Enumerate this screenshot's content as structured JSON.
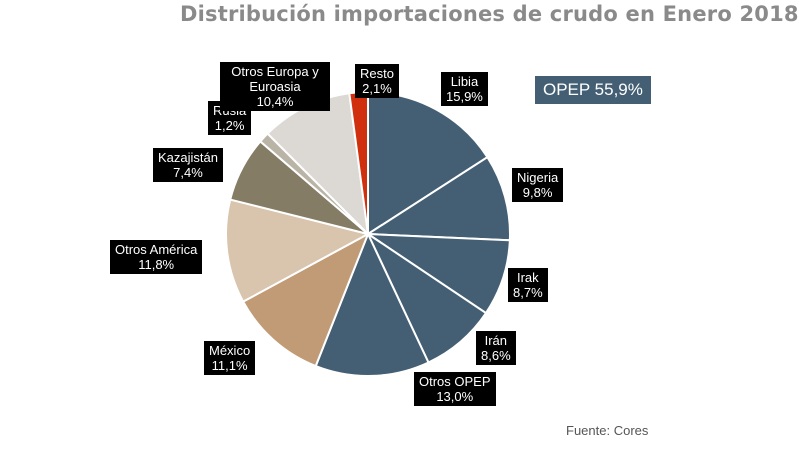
{
  "chart_data": {
    "type": "pie",
    "title": "Distribución importaciones de crudo en Enero 2018",
    "slices": [
      {
        "label": "Libia",
        "value": 15.9,
        "value_text": "15,9%",
        "color": "#445f74"
      },
      {
        "label": "Nigeria",
        "value": 9.8,
        "value_text": "9,8%",
        "color": "#445f74"
      },
      {
        "label": "Irak",
        "value": 8.7,
        "value_text": "8,7%",
        "color": "#445f74"
      },
      {
        "label": "Irán",
        "value": 8.6,
        "value_text": "8,6%",
        "color": "#445f74"
      },
      {
        "label": "Otros OPEP",
        "value": 13.0,
        "value_text": "13,0%",
        "color": "#445f74"
      },
      {
        "label": "México",
        "value": 11.1,
        "value_text": "11,1%",
        "color": "#c09b76"
      },
      {
        "label": "Otros América",
        "value": 11.8,
        "value_text": "11,8%",
        "color": "#d9c4ad"
      },
      {
        "label": "Kazajistán",
        "value": 7.4,
        "value_text": "7,4%",
        "color": "#857c66"
      },
      {
        "label": "Rusia",
        "value": 1.2,
        "value_text": "1,2%",
        "color": "#bab4a6"
      },
      {
        "label": "Otros Europa y Euroasia",
        "value": 10.4,
        "value_text": "10,4%",
        "color": "#dcd9d4"
      },
      {
        "label": "Resto",
        "value": 2.1,
        "value_text": "2,1%",
        "color": "#d0300d"
      }
    ],
    "group_callout": "OPEP 55,9%",
    "source": "Fuente: Cores"
  }
}
